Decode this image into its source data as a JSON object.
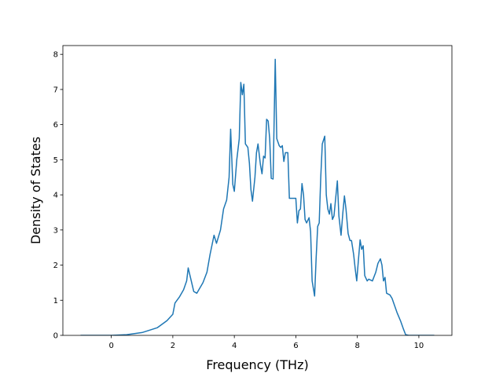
{
  "chart_data": {
    "type": "line",
    "x_label": "Frequency (THz)",
    "y_label": "Density of States",
    "color": "#1f77b4",
    "xlim": [
      -1.575,
      11.075
    ],
    "ylim": [
      0,
      8.25
    ],
    "xticks": [
      0,
      2,
      4,
      6,
      8,
      10
    ],
    "yticks": [
      0,
      1,
      2,
      3,
      4,
      5,
      6,
      7,
      8
    ],
    "grid": false,
    "x": [
      -1.0,
      0,
      0.5,
      1.0,
      1.5,
      1.81,
      2.0,
      2.07,
      2.22,
      2.35,
      2.45,
      2.5,
      2.6,
      2.68,
      2.78,
      2.88,
      2.98,
      3.11,
      3.21,
      3.34,
      3.42,
      3.55,
      3.65,
      3.75,
      3.83,
      3.88,
      3.95,
      4.0,
      4.08,
      4.16,
      4.21,
      4.26,
      4.31,
      4.36,
      4.44,
      4.49,
      4.54,
      4.59,
      4.67,
      4.72,
      4.77,
      4.85,
      4.9,
      4.95,
      5.0,
      5.05,
      5.1,
      5.15,
      5.2,
      5.26,
      5.33,
      5.38,
      5.46,
      5.51,
      5.56,
      5.61,
      5.66,
      5.74,
      5.79,
      5.94,
      6.0,
      6.05,
      6.1,
      6.15,
      6.2,
      6.25,
      6.3,
      6.35,
      6.43,
      6.48,
      6.53,
      6.61,
      6.66,
      6.71,
      6.76,
      6.81,
      6.86,
      6.94,
      6.99,
      7.04,
      7.09,
      7.14,
      7.19,
      7.24,
      7.35,
      7.4,
      7.47,
      7.53,
      7.58,
      7.63,
      7.7,
      7.76,
      7.81,
      7.88,
      7.93,
      7.98,
      8.04,
      8.09,
      8.14,
      8.19,
      8.24,
      8.32,
      8.37,
      8.49,
      8.6,
      8.67,
      8.75,
      8.8,
      8.85,
      8.9,
      8.95,
      9.06,
      9.13,
      9.21,
      9.29,
      9.41,
      9.49,
      9.57,
      9.67,
      10.5
    ],
    "y": [
      0,
      0,
      0.02,
      0.08,
      0.22,
      0.42,
      0.6,
      0.92,
      1.1,
      1.3,
      1.55,
      1.92,
      1.55,
      1.25,
      1.2,
      1.35,
      1.5,
      1.8,
      2.3,
      2.85,
      2.62,
      3.0,
      3.6,
      3.85,
      4.5,
      5.87,
      4.3,
      4.1,
      5.0,
      5.6,
      7.2,
      6.85,
      7.15,
      5.45,
      5.35,
      4.9,
      4.15,
      3.82,
      4.5,
      5.2,
      5.45,
      4.85,
      4.6,
      5.1,
      5.05,
      6.15,
      6.1,
      5.6,
      4.47,
      4.45,
      7.86,
      5.6,
      5.4,
      5.35,
      5.4,
      4.95,
      5.2,
      5.2,
      3.9,
      3.9,
      3.9,
      3.2,
      3.55,
      3.6,
      4.32,
      4.0,
      3.3,
      3.2,
      3.35,
      2.95,
      1.55,
      1.12,
      2.2,
      3.1,
      3.2,
      4.5,
      5.45,
      5.67,
      4.0,
      3.6,
      3.45,
      3.75,
      3.3,
      3.4,
      4.4,
      3.4,
      2.85,
      3.5,
      3.97,
      3.6,
      2.9,
      2.7,
      2.7,
      2.3,
      1.9,
      1.55,
      2.2,
      2.72,
      2.45,
      2.55,
      1.7,
      1.55,
      1.6,
      1.55,
      1.8,
      2.05,
      2.18,
      2.0,
      1.55,
      1.65,
      1.2,
      1.15,
      1.05,
      0.85,
      0.65,
      0.4,
      0.2,
      0.02,
      0,
      0
    ]
  }
}
